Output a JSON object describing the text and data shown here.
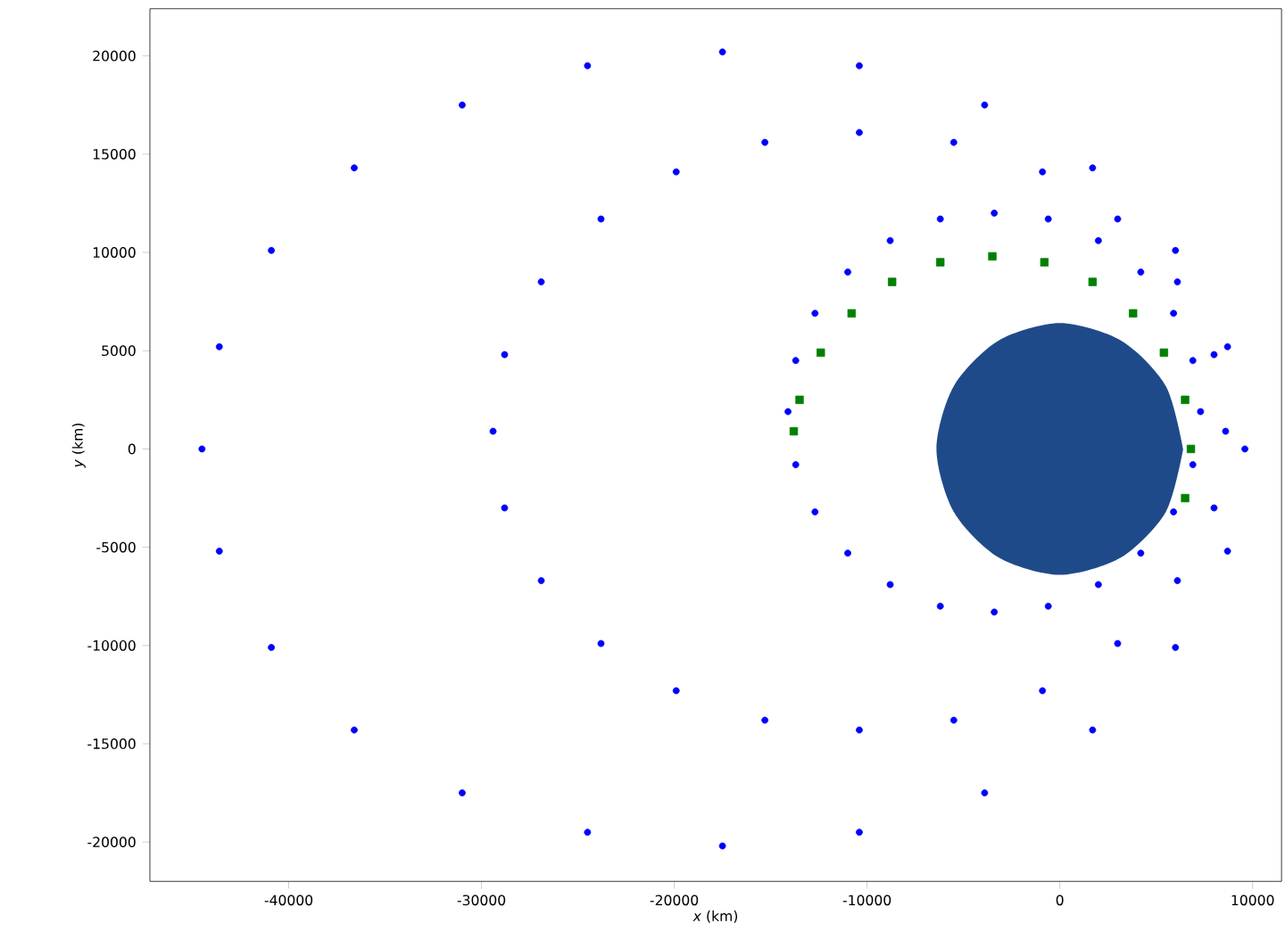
{
  "chart_data": {
    "type": "scatter",
    "xlabel": "*x* (km)",
    "ylabel": "*y* (km)",
    "xlim": [
      -47200,
      11500
    ],
    "ylim": [
      -22000,
      22400
    ],
    "xticks": [
      -40000,
      -30000,
      -20000,
      -10000,
      0,
      10000
    ],
    "yticks": [
      -20000,
      -15000,
      -10000,
      -5000,
      0,
      5000,
      10000,
      15000,
      20000
    ],
    "grid": false,
    "series": [
      {
        "color": "#0000ff",
        "marker": "circle",
        "x": [
          9600,
          8700,
          6000,
          1700,
          -3900,
          -10400,
          -17500,
          -24500,
          -31000,
          -36600,
          -40900,
          -43600,
          -44500,
          -43600,
          -40900,
          -36600,
          -31000,
          -24500,
          -17500,
          -10400,
          -3900,
          1700,
          6000,
          8700
        ],
        "values": [
          0,
          5200,
          10100,
          14300,
          17500,
          19500,
          20200,
          19500,
          17500,
          14300,
          10100,
          5200,
          0,
          -5200,
          -10100,
          -14300,
          -17500,
          -19500,
          -20200,
          -19500,
          -17500,
          -14300,
          -10100,
          -5200
        ]
      },
      {
        "color": "#0000ff",
        "marker": "circle",
        "x": [
          8600,
          8000,
          6100,
          3000,
          -900,
          -5500,
          -10400,
          -15300,
          -19900,
          -23800,
          -26900,
          -28800,
          -29400,
          -28800,
          -26900,
          -23800,
          -19900,
          -15300,
          -10400,
          -5500,
          -900,
          3000,
          6100,
          8000
        ],
        "values": [
          900,
          4800,
          8500,
          11700,
          14100,
          15600,
          16100,
          15600,
          14100,
          11700,
          8500,
          4800,
          900,
          -3000,
          -6700,
          -9900,
          -12300,
          -13800,
          -14300,
          -13800,
          -12300,
          -9900,
          -6700,
          -3000
        ]
      },
      {
        "color": "#0000ff",
        "marker": "circle",
        "x": [
          7300,
          6900,
          5900,
          4200,
          2000,
          -600,
          -3400,
          -6200,
          -8800,
          -11000,
          -12700,
          -13700,
          -14100,
          -13700,
          -12700,
          -11000,
          -8800,
          -6200,
          -3400,
          -600,
          2000,
          4200,
          5900,
          6900
        ],
        "values": [
          1900,
          4500,
          6900,
          9000,
          10600,
          11700,
          12000,
          11700,
          10600,
          9000,
          6900,
          4500,
          1900,
          -800,
          -3200,
          -5300,
          -6900,
          -8000,
          -8300,
          -8000,
          -6900,
          -5300,
          -3200,
          -800
        ]
      },
      {
        "type": "area",
        "color": "#1f4a8a",
        "x": [
          6400,
          5500,
          3200,
          0,
          -3200,
          -5500,
          -6400,
          -5500,
          -3200,
          0,
          3200,
          5500,
          6400
        ],
        "values": [
          0,
          3200,
          5500,
          6400,
          5500,
          3200,
          0,
          -3200,
          -5500,
          -6400,
          -5500,
          -3200,
          0
        ]
      },
      {
        "color": "#008000",
        "marker": "square",
        "x": [
          6500,
          6800,
          6500,
          5400,
          3800,
          1700,
          -800,
          -3500,
          -6200,
          -8700,
          -10800,
          -12400,
          -13500,
          -13800
        ],
        "values": [
          -2500,
          0,
          2500,
          4900,
          6900,
          8500,
          9500,
          9800,
          9500,
          8500,
          6900,
          4900,
          2500,
          900
        ]
      }
    ]
  }
}
